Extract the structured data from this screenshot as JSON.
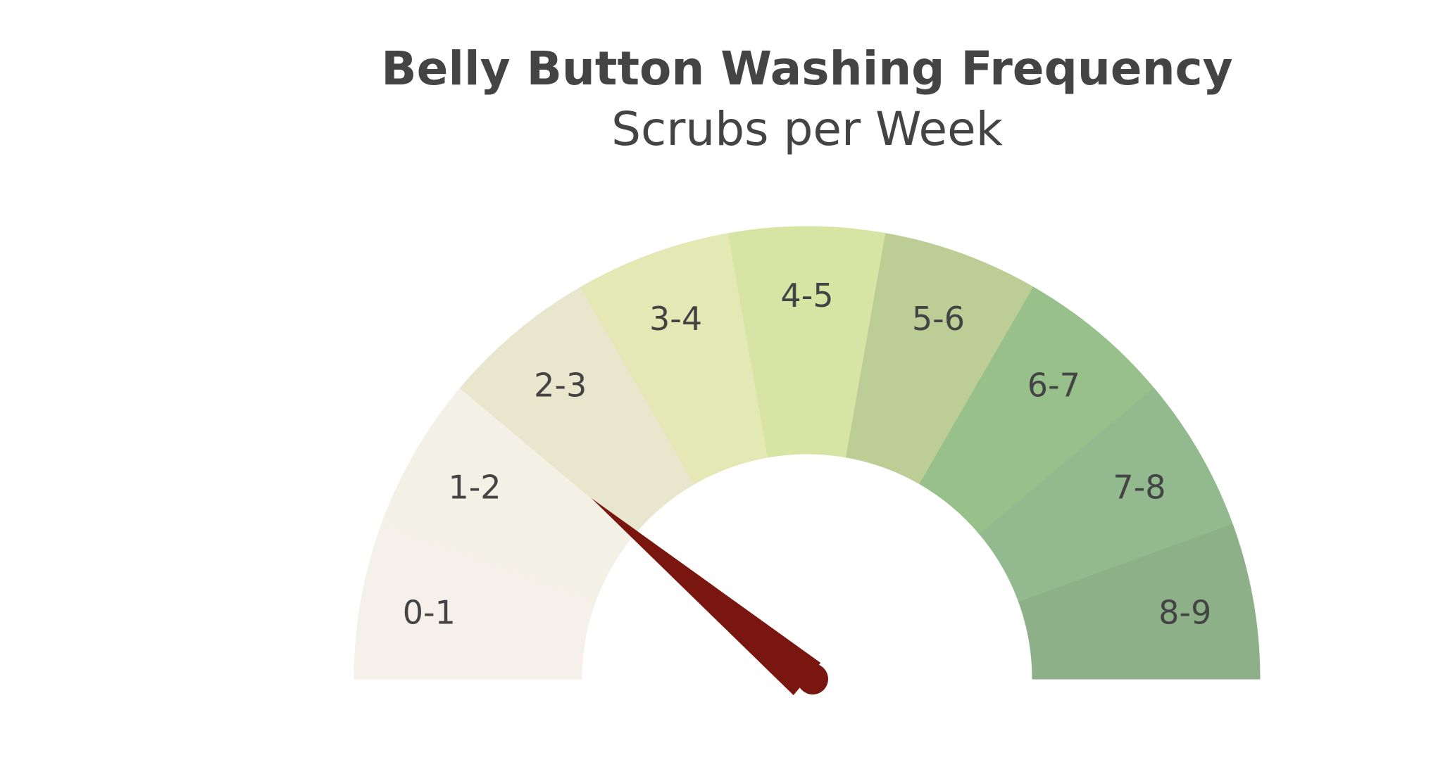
{
  "chart_data": {
    "type": "gauge",
    "title": "Belly Button Washing Frequency",
    "subtitle": "Scrubs per Week",
    "range": [
      0,
      9
    ],
    "value": 2,
    "bands": [
      {
        "label": "0-1",
        "from": 0,
        "to": 1,
        "color": "#f5f1ea"
      },
      {
        "label": "1-2",
        "from": 1,
        "to": 2,
        "color": "#f3f0e5"
      },
      {
        "label": "2-3",
        "from": 2,
        "to": 3,
        "color": "#e8e6cd"
      },
      {
        "label": "3-4",
        "from": 3,
        "to": 4,
        "color": "#e4e8b4"
      },
      {
        "label": "4-5",
        "from": 4,
        "to": 5,
        "color": "#d7e4a4"
      },
      {
        "label": "5-6",
        "from": 5,
        "to": 6,
        "color": "#bccd96"
      },
      {
        "label": "6-7",
        "from": 6,
        "to": 7,
        "color": "#97c08a"
      },
      {
        "label": "7-8",
        "from": 7,
        "to": 8,
        "color": "#93ba8f"
      },
      {
        "label": "8-9",
        "from": 8,
        "to": 9,
        "color": "#8db088"
      }
    ],
    "needle_color": "#7a1610"
  }
}
